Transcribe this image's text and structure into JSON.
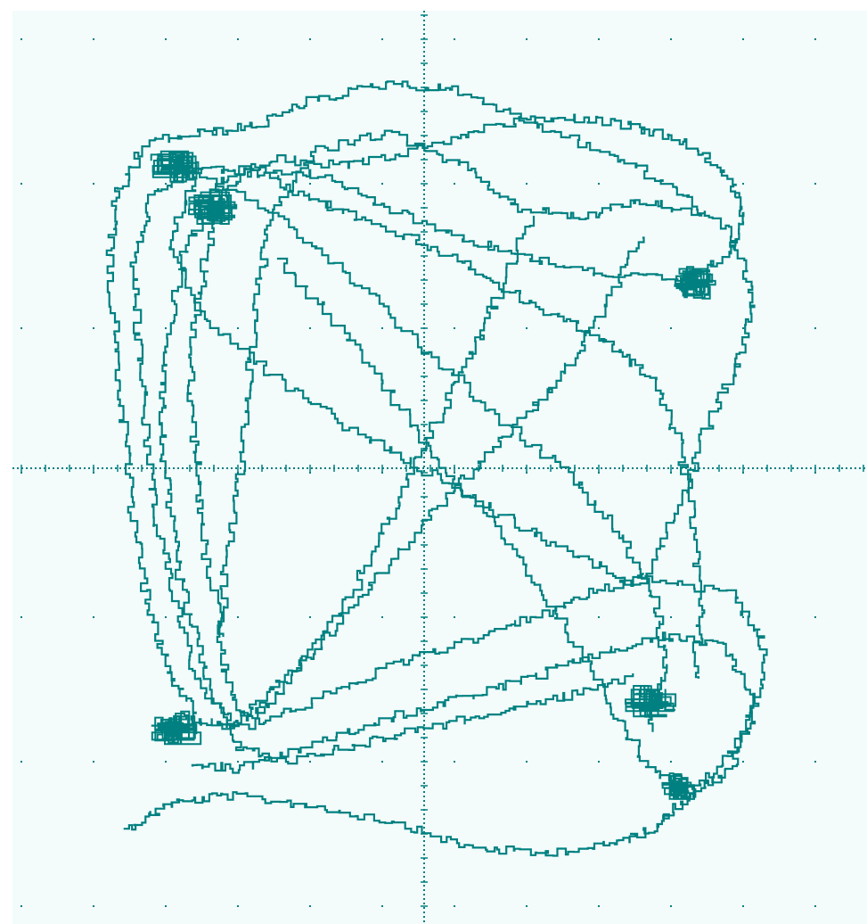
{
  "chart_data": {
    "type": "line",
    "title": "",
    "xlabel": "",
    "ylabel": "",
    "xlim": [
      -1,
      1
    ],
    "ylim": [
      -1,
      1
    ],
    "grid": true,
    "grid_style": "dotted",
    "axes_through_origin": true,
    "legend": "none",
    "colors": {
      "trace": "#008080",
      "background": "#f3fbfb",
      "grid": "#008080"
    },
    "series": [
      {
        "description_free_trajectory": true,
        "points": [
          [
            -0.82,
            -0.86
          ],
          [
            -0.7,
            -0.8
          ],
          [
            -0.55,
            -0.78
          ],
          [
            -0.35,
            -0.8
          ],
          [
            -0.1,
            -0.84
          ],
          [
            0.1,
            -0.9
          ],
          [
            0.3,
            -0.92
          ],
          [
            0.5,
            -0.9
          ],
          [
            0.62,
            -0.86
          ],
          [
            0.7,
            -0.8
          ],
          [
            0.8,
            -0.72
          ],
          [
            0.9,
            -0.6
          ],
          [
            0.93,
            -0.42
          ],
          [
            0.85,
            -0.3
          ],
          [
            0.62,
            -0.26
          ],
          [
            0.45,
            -0.3
          ],
          [
            0.3,
            -0.36
          ],
          [
            0.1,
            -0.42
          ],
          [
            -0.1,
            -0.48
          ],
          [
            -0.3,
            -0.56
          ],
          [
            -0.5,
            -0.62
          ],
          [
            -0.62,
            -0.6
          ],
          [
            -0.7,
            -0.48
          ],
          [
            -0.76,
            -0.3
          ],
          [
            -0.8,
            -0.1
          ],
          [
            -0.82,
            0.1
          ],
          [
            -0.84,
            0.3
          ],
          [
            -0.86,
            0.5
          ],
          [
            -0.84,
            0.65
          ],
          [
            -0.76,
            0.78
          ],
          [
            -0.6,
            0.8
          ],
          [
            -0.45,
            0.82
          ],
          [
            -0.3,
            0.88
          ],
          [
            -0.1,
            0.92
          ],
          [
            0.1,
            0.9
          ],
          [
            0.3,
            0.82
          ],
          [
            0.5,
            0.75
          ],
          [
            0.7,
            0.66
          ],
          [
            0.84,
            0.56
          ],
          [
            0.9,
            0.4
          ],
          [
            0.86,
            0.25
          ],
          [
            0.78,
            0.1
          ],
          [
            0.7,
            -0.1
          ],
          [
            0.6,
            -0.28
          ],
          [
            0.4,
            -0.2
          ],
          [
            0.2,
            -0.1
          ],
          [
            0.0,
            0.0
          ],
          [
            -0.2,
            0.1
          ],
          [
            -0.4,
            0.22
          ],
          [
            -0.6,
            0.35
          ],
          [
            -0.7,
            0.55
          ],
          [
            -0.62,
            0.7
          ],
          [
            -0.4,
            0.6
          ],
          [
            -0.2,
            0.45
          ],
          [
            0.0,
            0.28
          ],
          [
            0.2,
            0.12
          ],
          [
            0.4,
            -0.02
          ],
          [
            0.55,
            -0.18
          ],
          [
            0.64,
            -0.34
          ],
          [
            0.66,
            -0.5
          ],
          [
            0.62,
            -0.62
          ]
        ]
      },
      {
        "points": [
          [
            -0.55,
            -0.4
          ],
          [
            -0.6,
            -0.2
          ],
          [
            -0.62,
            0.0
          ],
          [
            -0.64,
            0.2
          ],
          [
            -0.62,
            0.4
          ],
          [
            -0.58,
            0.58
          ],
          [
            -0.5,
            0.72
          ],
          [
            -0.3,
            0.7
          ],
          [
            -0.1,
            0.62
          ],
          [
            0.1,
            0.55
          ],
          [
            0.3,
            0.5
          ],
          [
            0.5,
            0.46
          ],
          [
            0.7,
            0.45
          ],
          [
            0.82,
            0.5
          ],
          [
            0.88,
            0.6
          ],
          [
            0.84,
            0.7
          ],
          [
            0.72,
            0.78
          ],
          [
            0.56,
            0.82
          ],
          [
            0.4,
            0.84
          ],
          [
            0.2,
            0.82
          ],
          [
            0.0,
            0.76
          ],
          [
            -0.2,
            0.72
          ],
          [
            -0.4,
            0.74
          ],
          [
            -0.56,
            0.68
          ],
          [
            -0.66,
            0.5
          ],
          [
            -0.7,
            0.3
          ],
          [
            -0.72,
            0.1
          ],
          [
            -0.7,
            -0.1
          ],
          [
            -0.66,
            -0.3
          ],
          [
            -0.6,
            -0.5
          ],
          [
            -0.52,
            -0.66
          ],
          [
            -0.4,
            -0.7
          ],
          [
            -0.2,
            -0.66
          ],
          [
            0.0,
            -0.62
          ],
          [
            0.2,
            -0.58
          ],
          [
            0.4,
            -0.54
          ],
          [
            0.56,
            -0.5
          ]
        ]
      },
      {
        "points": [
          [
            -0.4,
            0.5
          ],
          [
            -0.2,
            0.3
          ],
          [
            -0.05,
            0.12
          ],
          [
            0.1,
            -0.05
          ],
          [
            0.25,
            -0.2
          ],
          [
            0.38,
            -0.38
          ],
          [
            0.5,
            -0.55
          ],
          [
            0.6,
            -0.7
          ],
          [
            0.72,
            -0.78
          ],
          [
            0.84,
            -0.72
          ],
          [
            0.9,
            -0.55
          ],
          [
            0.82,
            -0.42
          ],
          [
            0.66,
            -0.4
          ],
          [
            0.5,
            -0.44
          ],
          [
            0.3,
            -0.5
          ],
          [
            0.1,
            -0.55
          ],
          [
            -0.1,
            -0.6
          ],
          [
            -0.3,
            -0.66
          ],
          [
            -0.5,
            -0.72
          ],
          [
            -0.64,
            -0.7
          ]
        ]
      },
      {
        "points": [
          [
            0.3,
            0.6
          ],
          [
            0.2,
            0.4
          ],
          [
            0.12,
            0.25
          ],
          [
            0.02,
            0.08
          ],
          [
            -0.08,
            -0.1
          ],
          [
            -0.18,
            -0.28
          ],
          [
            -0.3,
            -0.44
          ],
          [
            -0.42,
            -0.56
          ],
          [
            -0.52,
            -0.62
          ],
          [
            -0.62,
            -0.5
          ],
          [
            -0.68,
            -0.3
          ],
          [
            -0.74,
            -0.1
          ],
          [
            -0.76,
            0.1
          ],
          [
            -0.78,
            0.3
          ],
          [
            -0.8,
            0.5
          ],
          [
            -0.74,
            0.66
          ],
          [
            -0.6,
            0.72
          ],
          [
            -0.44,
            0.7
          ],
          [
            -0.3,
            0.64
          ],
          [
            -0.14,
            0.58
          ],
          [
            0.04,
            0.52
          ],
          [
            0.2,
            0.44
          ],
          [
            0.36,
            0.36
          ],
          [
            0.5,
            0.3
          ],
          [
            0.62,
            0.22
          ],
          [
            0.7,
            0.05
          ],
          [
            0.74,
            -0.15
          ],
          [
            0.76,
            -0.35
          ],
          [
            0.74,
            -0.5
          ]
        ]
      },
      {
        "points": [
          [
            0.6,
            0.55
          ],
          [
            0.5,
            0.38
          ],
          [
            0.38,
            0.22
          ],
          [
            0.24,
            0.08
          ],
          [
            0.1,
            -0.04
          ],
          [
            -0.06,
            -0.2
          ],
          [
            -0.22,
            -0.36
          ],
          [
            -0.38,
            -0.5
          ],
          [
            -0.5,
            -0.6
          ],
          [
            -0.56,
            -0.42
          ],
          [
            -0.54,
            -0.2
          ],
          [
            -0.5,
            0.0
          ],
          [
            -0.48,
            0.2
          ],
          [
            -0.46,
            0.4
          ],
          [
            -0.42,
            0.6
          ],
          [
            -0.3,
            0.76
          ],
          [
            -0.1,
            0.8
          ],
          [
            0.1,
            0.72
          ],
          [
            0.26,
            0.62
          ],
          [
            0.44,
            0.6
          ],
          [
            0.6,
            0.64
          ],
          [
            0.76,
            0.6
          ]
        ]
      }
    ],
    "clusters": [
      {
        "x": -0.68,
        "y": 0.72,
        "r": 0.07
      },
      {
        "x": -0.58,
        "y": 0.62,
        "r": 0.07
      },
      {
        "x": -0.68,
        "y": -0.62,
        "r": 0.07
      },
      {
        "x": 0.62,
        "y": -0.56,
        "r": 0.07
      },
      {
        "x": 0.74,
        "y": 0.44,
        "r": 0.06
      },
      {
        "x": 0.7,
        "y": -0.76,
        "r": 0.05
      }
    ]
  }
}
